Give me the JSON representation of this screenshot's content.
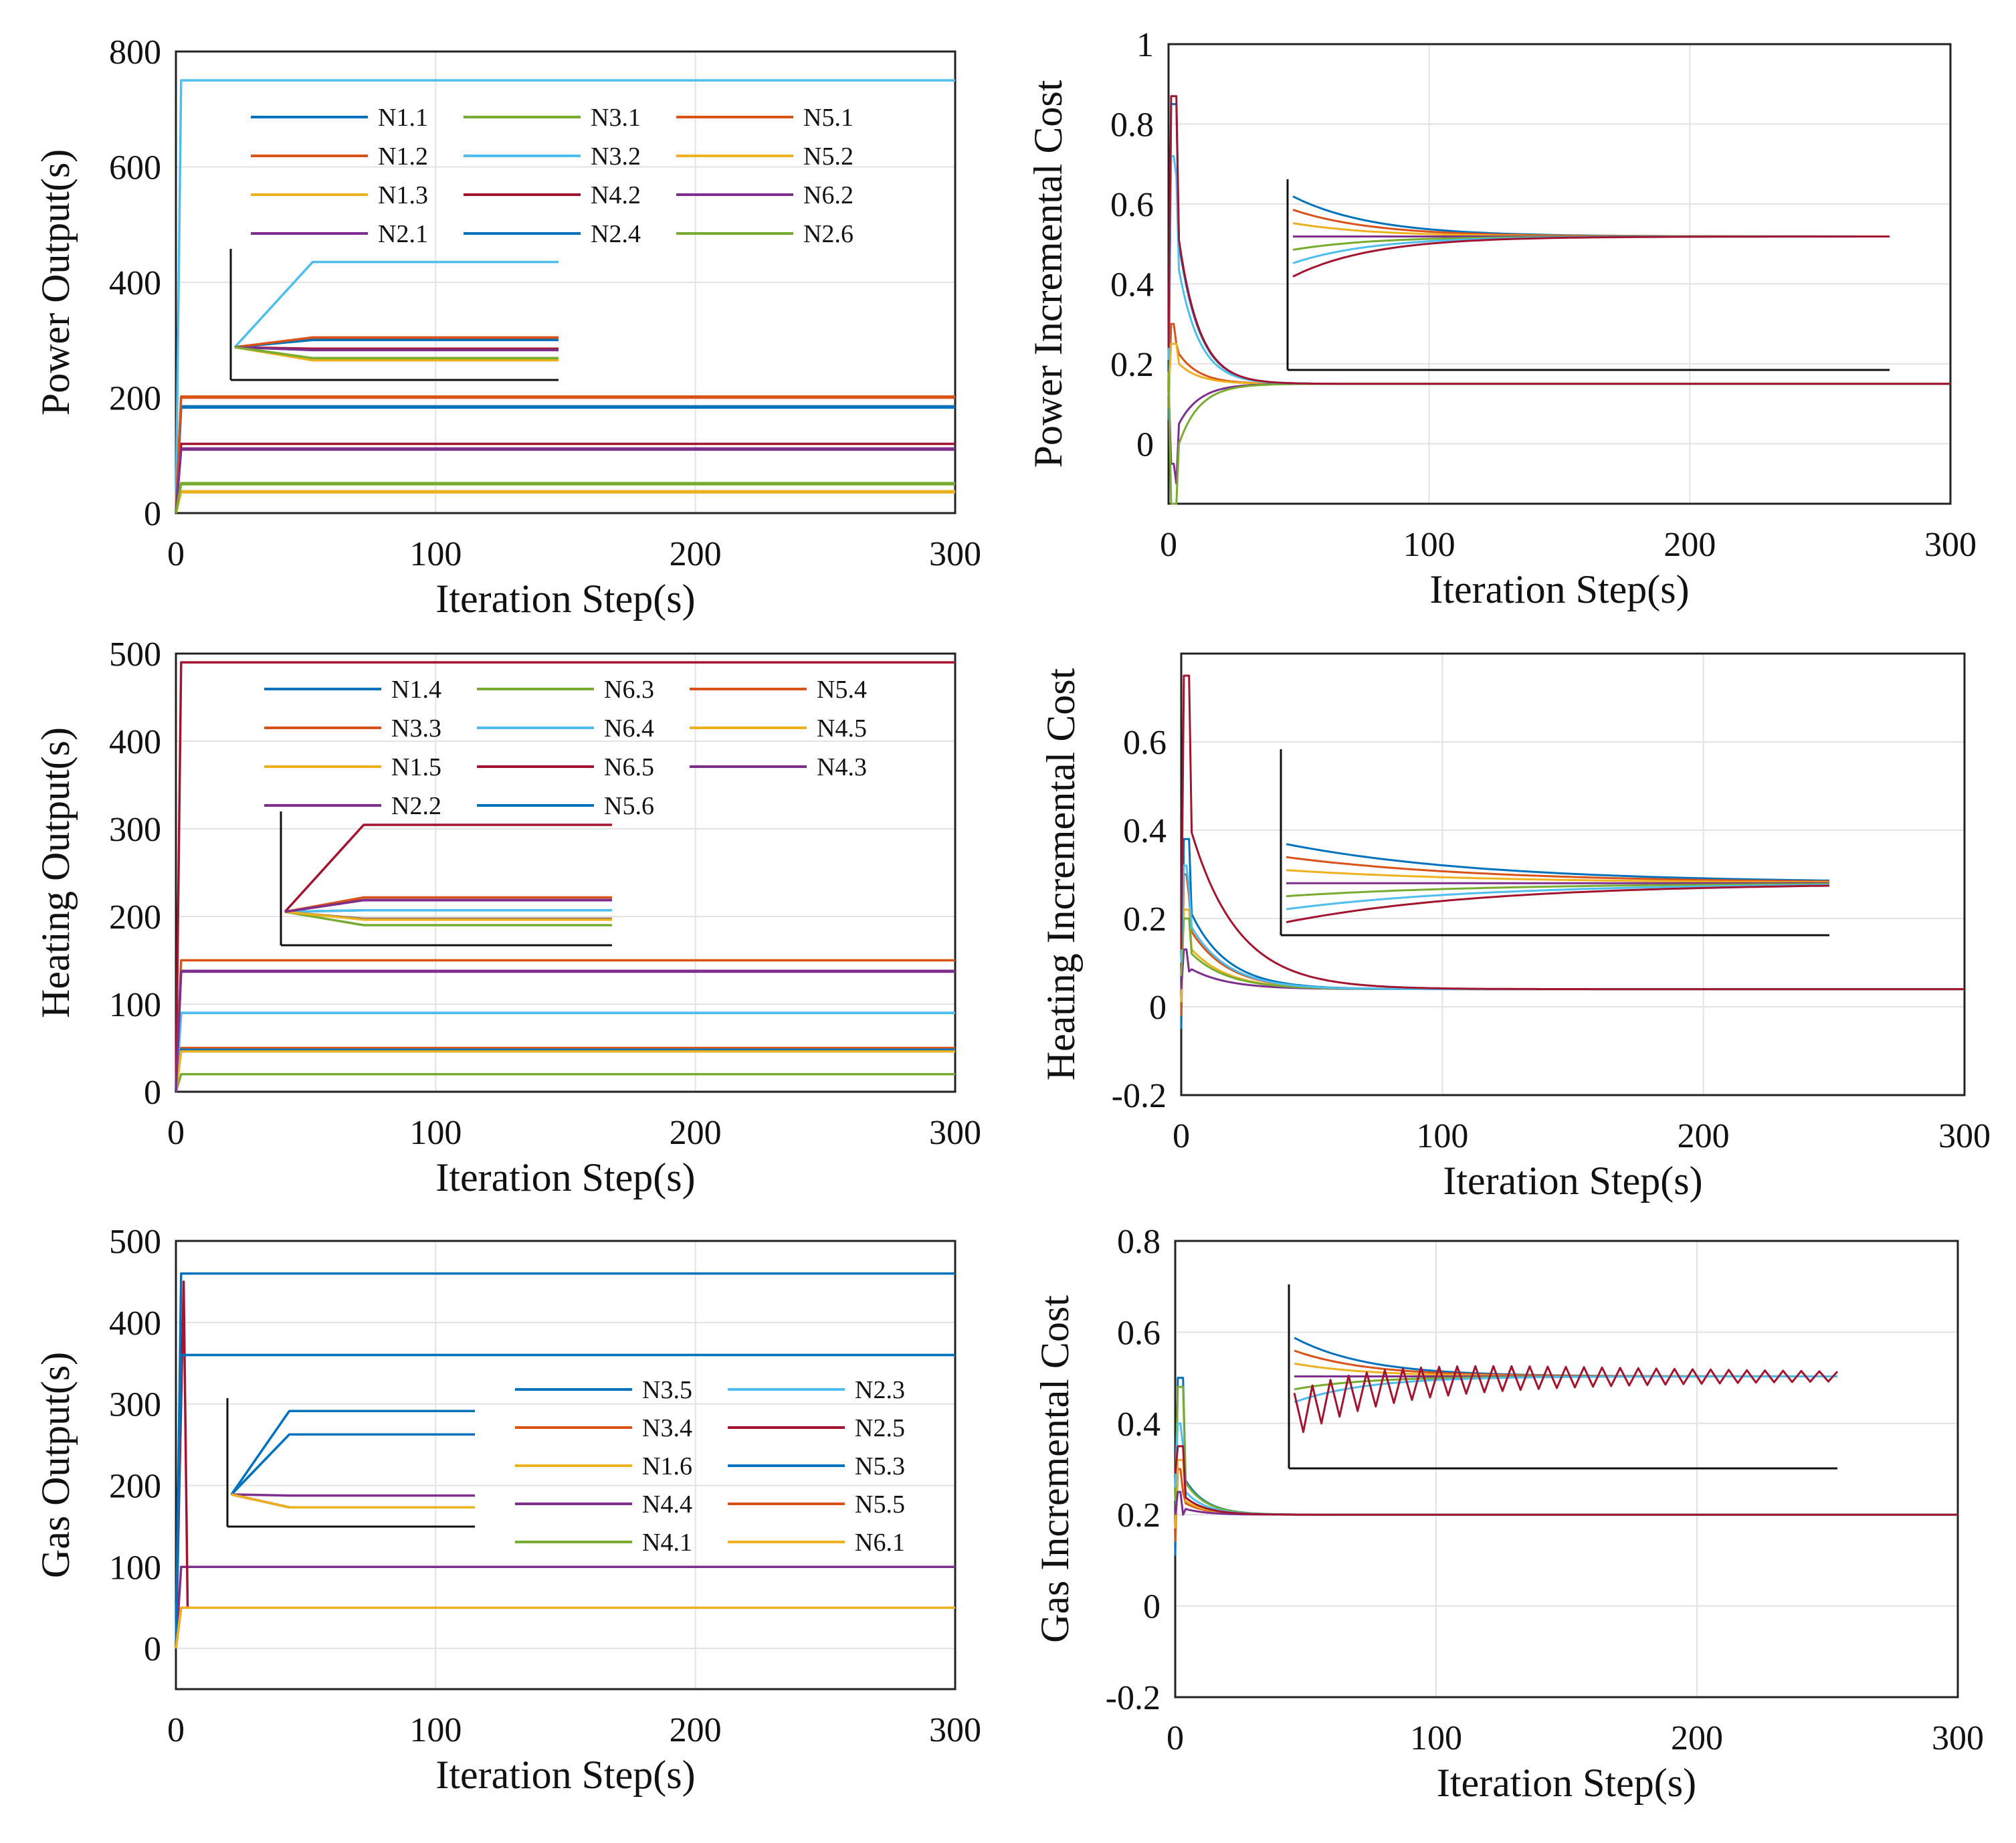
{
  "figure": {
    "background": "#ffffff"
  },
  "palette": {
    "c1": "#0072BD",
    "c2": "#D95319",
    "c3": "#EDB120",
    "c4": "#7E2F8E",
    "c5": "#77AC30",
    "c6": "#4DBEEE",
    "c7": "#A2142F"
  },
  "chart_data": [
    {
      "id": "p1",
      "type": "line",
      "ylabel": "Power Output(s)",
      "xlabel": "Iteration Step(s)",
      "xlim": [
        0,
        300
      ],
      "ylim": [
        0,
        800
      ],
      "xticks": [
        "0",
        "100",
        "200",
        "300"
      ],
      "yticks": [
        "0",
        "200",
        "400",
        "600",
        "800"
      ],
      "legend_cols": 3,
      "series": [
        {
          "name": "N1.1",
          "color": "c1",
          "final": 185
        },
        {
          "name": "N1.2",
          "color": "c2",
          "final": 200
        },
        {
          "name": "N1.3",
          "color": "c3",
          "final": 38
        },
        {
          "name": "N2.1",
          "color": "c4",
          "final": 112
        },
        {
          "name": "N3.1",
          "color": "c5",
          "final": 50
        },
        {
          "name": "N3.2",
          "color": "c6",
          "final": 750
        },
        {
          "name": "N4.2",
          "color": "c7",
          "final": 120
        },
        {
          "name": "N2.4",
          "color": "c1",
          "final": 183
        },
        {
          "name": "N5.1",
          "color": "c2",
          "final": 202
        },
        {
          "name": "N5.2",
          "color": "c3",
          "final": 36
        },
        {
          "name": "N6.2",
          "color": "c4",
          "final": 110
        },
        {
          "name": "N2.6",
          "color": "c5",
          "final": 52
        }
      ]
    },
    {
      "id": "p2",
      "type": "line",
      "ylabel": "Power Incremental Cost",
      "xlabel": "Iteration Step(s)",
      "xlim": [
        0,
        300
      ],
      "ylim": [
        -0.15,
        1.0
      ],
      "xticks": [
        "0",
        "100",
        "200",
        "300"
      ],
      "yticks": [
        "0",
        "0.2",
        "0.4",
        "0.6",
        "0.8",
        "1"
      ],
      "steady": 0.15,
      "series": [
        {
          "color": "c1",
          "peak": 0.85
        },
        {
          "color": "c2",
          "peak": 0.3
        },
        {
          "color": "c3",
          "peak": 0.25
        },
        {
          "color": "c4",
          "peak": -0.05
        },
        {
          "color": "c5",
          "peak": -0.15
        },
        {
          "color": "c6",
          "peak": 0.72
        },
        {
          "color": "c7",
          "peak": 0.87
        }
      ]
    },
    {
      "id": "h1",
      "type": "line",
      "ylabel": "Heating Output(s)",
      "xlabel": "Iteration Step(s)",
      "xlim": [
        0,
        300
      ],
      "ylim": [
        0,
        500
      ],
      "xticks": [
        "0",
        "100",
        "200",
        "300"
      ],
      "yticks": [
        "0",
        "100",
        "200",
        "300",
        "400",
        "500"
      ],
      "legend_cols": 3,
      "series": [
        {
          "name": "N1.4",
          "color": "c1",
          "final": 90
        },
        {
          "name": "N3.3",
          "color": "c2",
          "final": 50
        },
        {
          "name": "N1.5",
          "color": "c3",
          "final": 48
        },
        {
          "name": "N2.2",
          "color": "c4",
          "final": 138
        },
        {
          "name": "N6.3",
          "color": "c5",
          "final": 20
        },
        {
          "name": "N6.4",
          "color": "c6",
          "final": 90
        },
        {
          "name": "N6.5",
          "color": "c7",
          "final": 490
        },
        {
          "name": "N5.6",
          "color": "c1",
          "final": 48
        },
        {
          "name": "N5.4",
          "color": "c2",
          "final": 150
        },
        {
          "name": "N4.5",
          "color": "c3",
          "final": 46
        },
        {
          "name": "N4.3",
          "color": "c4",
          "final": 137
        }
      ]
    },
    {
      "id": "h2",
      "type": "line",
      "ylabel": "Heating Incremental Cost",
      "xlabel": "Iteration Step(s)",
      "xlim": [
        0,
        300
      ],
      "ylim": [
        -0.2,
        0.8
      ],
      "xticks": [
        "0",
        "100",
        "200",
        "300"
      ],
      "yticks": [
        "-0.2",
        "0",
        "0.2",
        "0.4",
        "0.6"
      ],
      "steady": 0.04,
      "series": [
        {
          "color": "c1",
          "peak": 0.38
        },
        {
          "color": "c2",
          "peak": 0.3
        },
        {
          "color": "c3",
          "peak": 0.22
        },
        {
          "color": "c4",
          "peak": 0.13
        },
        {
          "color": "c5",
          "peak": 0.2
        },
        {
          "color": "c6",
          "peak": 0.32
        },
        {
          "color": "c7",
          "peak": 0.75
        }
      ]
    },
    {
      "id": "g1",
      "type": "line",
      "ylabel": "Gas Output(s)",
      "xlabel": "Iteration Step(s)",
      "xlim": [
        0,
        300
      ],
      "ylim": [
        -50,
        500
      ],
      "xticks": [
        "0",
        "100",
        "200",
        "300"
      ],
      "yticks": [
        "0",
        "100",
        "200",
        "300",
        "400",
        "500"
      ],
      "legend_cols": 2,
      "series": [
        {
          "name": "N3.5",
          "color": "c1",
          "final": 460
        },
        {
          "name": "N3.4",
          "color": "c2",
          "final": 50
        },
        {
          "name": "N1.6",
          "color": "c3",
          "final": 50
        },
        {
          "name": "N4.4",
          "color": "c4",
          "final": 100
        },
        {
          "name": "N4.1",
          "color": "c5",
          "final": 50
        },
        {
          "name": "N2.3",
          "color": "c6",
          "final": 360
        },
        {
          "name": "N2.5",
          "color": "c7",
          "final": 50
        },
        {
          "name": "N5.3",
          "color": "c1",
          "final": 360
        },
        {
          "name": "N5.5",
          "color": "c2",
          "final": 50
        },
        {
          "name": "N6.1",
          "color": "c3",
          "final": 50
        }
      ]
    },
    {
      "id": "g2",
      "type": "line",
      "ylabel": "Gas Incremental Cost",
      "xlabel": "Iteration Step(s)",
      "xlim": [
        0,
        300
      ],
      "ylim": [
        -0.2,
        0.8
      ],
      "xticks": [
        "0",
        "100",
        "200",
        "300"
      ],
      "yticks": [
        "-0.2",
        "0",
        "0.2",
        "0.4",
        "0.6",
        "0.8"
      ],
      "steady": 0.2,
      "series": [
        {
          "color": "c1",
          "peak": 0.5
        },
        {
          "color": "c2",
          "peak": 0.3
        },
        {
          "color": "c3",
          "peak": 0.32
        },
        {
          "color": "c4",
          "peak": 0.25
        },
        {
          "color": "c5",
          "peak": 0.48
        },
        {
          "color": "c6",
          "peak": 0.4
        },
        {
          "color": "c7",
          "peak": 0.35
        }
      ]
    }
  ]
}
